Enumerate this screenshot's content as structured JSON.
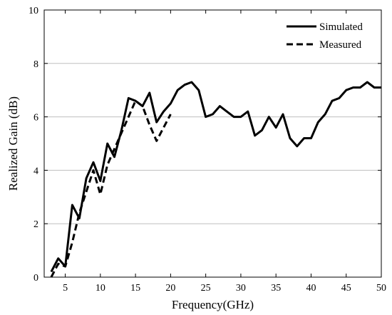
{
  "chart_data": {
    "type": "line",
    "title": "",
    "xlabel": "Frequency(GHz)",
    "ylabel": "Realized Gain (dB)",
    "xlim": [
      2,
      50
    ],
    "ylim": [
      0,
      10
    ],
    "x_ticks": [
      5,
      10,
      15,
      20,
      25,
      30,
      35,
      40,
      45,
      50
    ],
    "y_ticks": [
      0,
      2,
      4,
      6,
      8,
      10
    ],
    "grid": "horizontal",
    "legend_position": "top-right",
    "series": [
      {
        "name": "Simulated",
        "style": "solid",
        "color": "#000000",
        "x": [
          3,
          4,
          5,
          6,
          7,
          8,
          9,
          10,
          11,
          12,
          13,
          14,
          15,
          16,
          17,
          18,
          19,
          20,
          21,
          22,
          23,
          24,
          25,
          26,
          27,
          28,
          29,
          30,
          31,
          32,
          33,
          34,
          35,
          36,
          37,
          38,
          39,
          40,
          41,
          42,
          43,
          44,
          45,
          46,
          47,
          48,
          49,
          50
        ],
        "y": [
          0.2,
          0.7,
          0.4,
          2.7,
          2.2,
          3.7,
          4.3,
          3.6,
          5.0,
          4.5,
          5.5,
          6.7,
          6.6,
          6.4,
          6.9,
          5.8,
          6.2,
          6.5,
          7.0,
          7.2,
          7.3,
          7.0,
          6.0,
          6.1,
          6.4,
          6.2,
          6.0,
          6.0,
          6.2,
          5.3,
          5.5,
          6.0,
          5.6,
          6.1,
          5.2,
          4.9,
          5.2,
          5.2,
          5.8,
          6.1,
          6.6,
          6.7,
          7.0,
          7.1,
          7.1,
          7.3,
          7.1,
          7.1
        ]
      },
      {
        "name": "Measured",
        "style": "dashed",
        "color": "#000000",
        "x": [
          3,
          4,
          5,
          6,
          7,
          8,
          9,
          10,
          11,
          12,
          13,
          14,
          15,
          16,
          17,
          18,
          19,
          20
        ],
        "y": [
          0.0,
          0.5,
          0.4,
          1.3,
          2.4,
          3.2,
          4.0,
          3.1,
          4.2,
          4.8,
          5.4,
          6.0,
          6.6,
          6.4,
          5.7,
          5.1,
          5.6,
          6.1
        ]
      }
    ]
  }
}
